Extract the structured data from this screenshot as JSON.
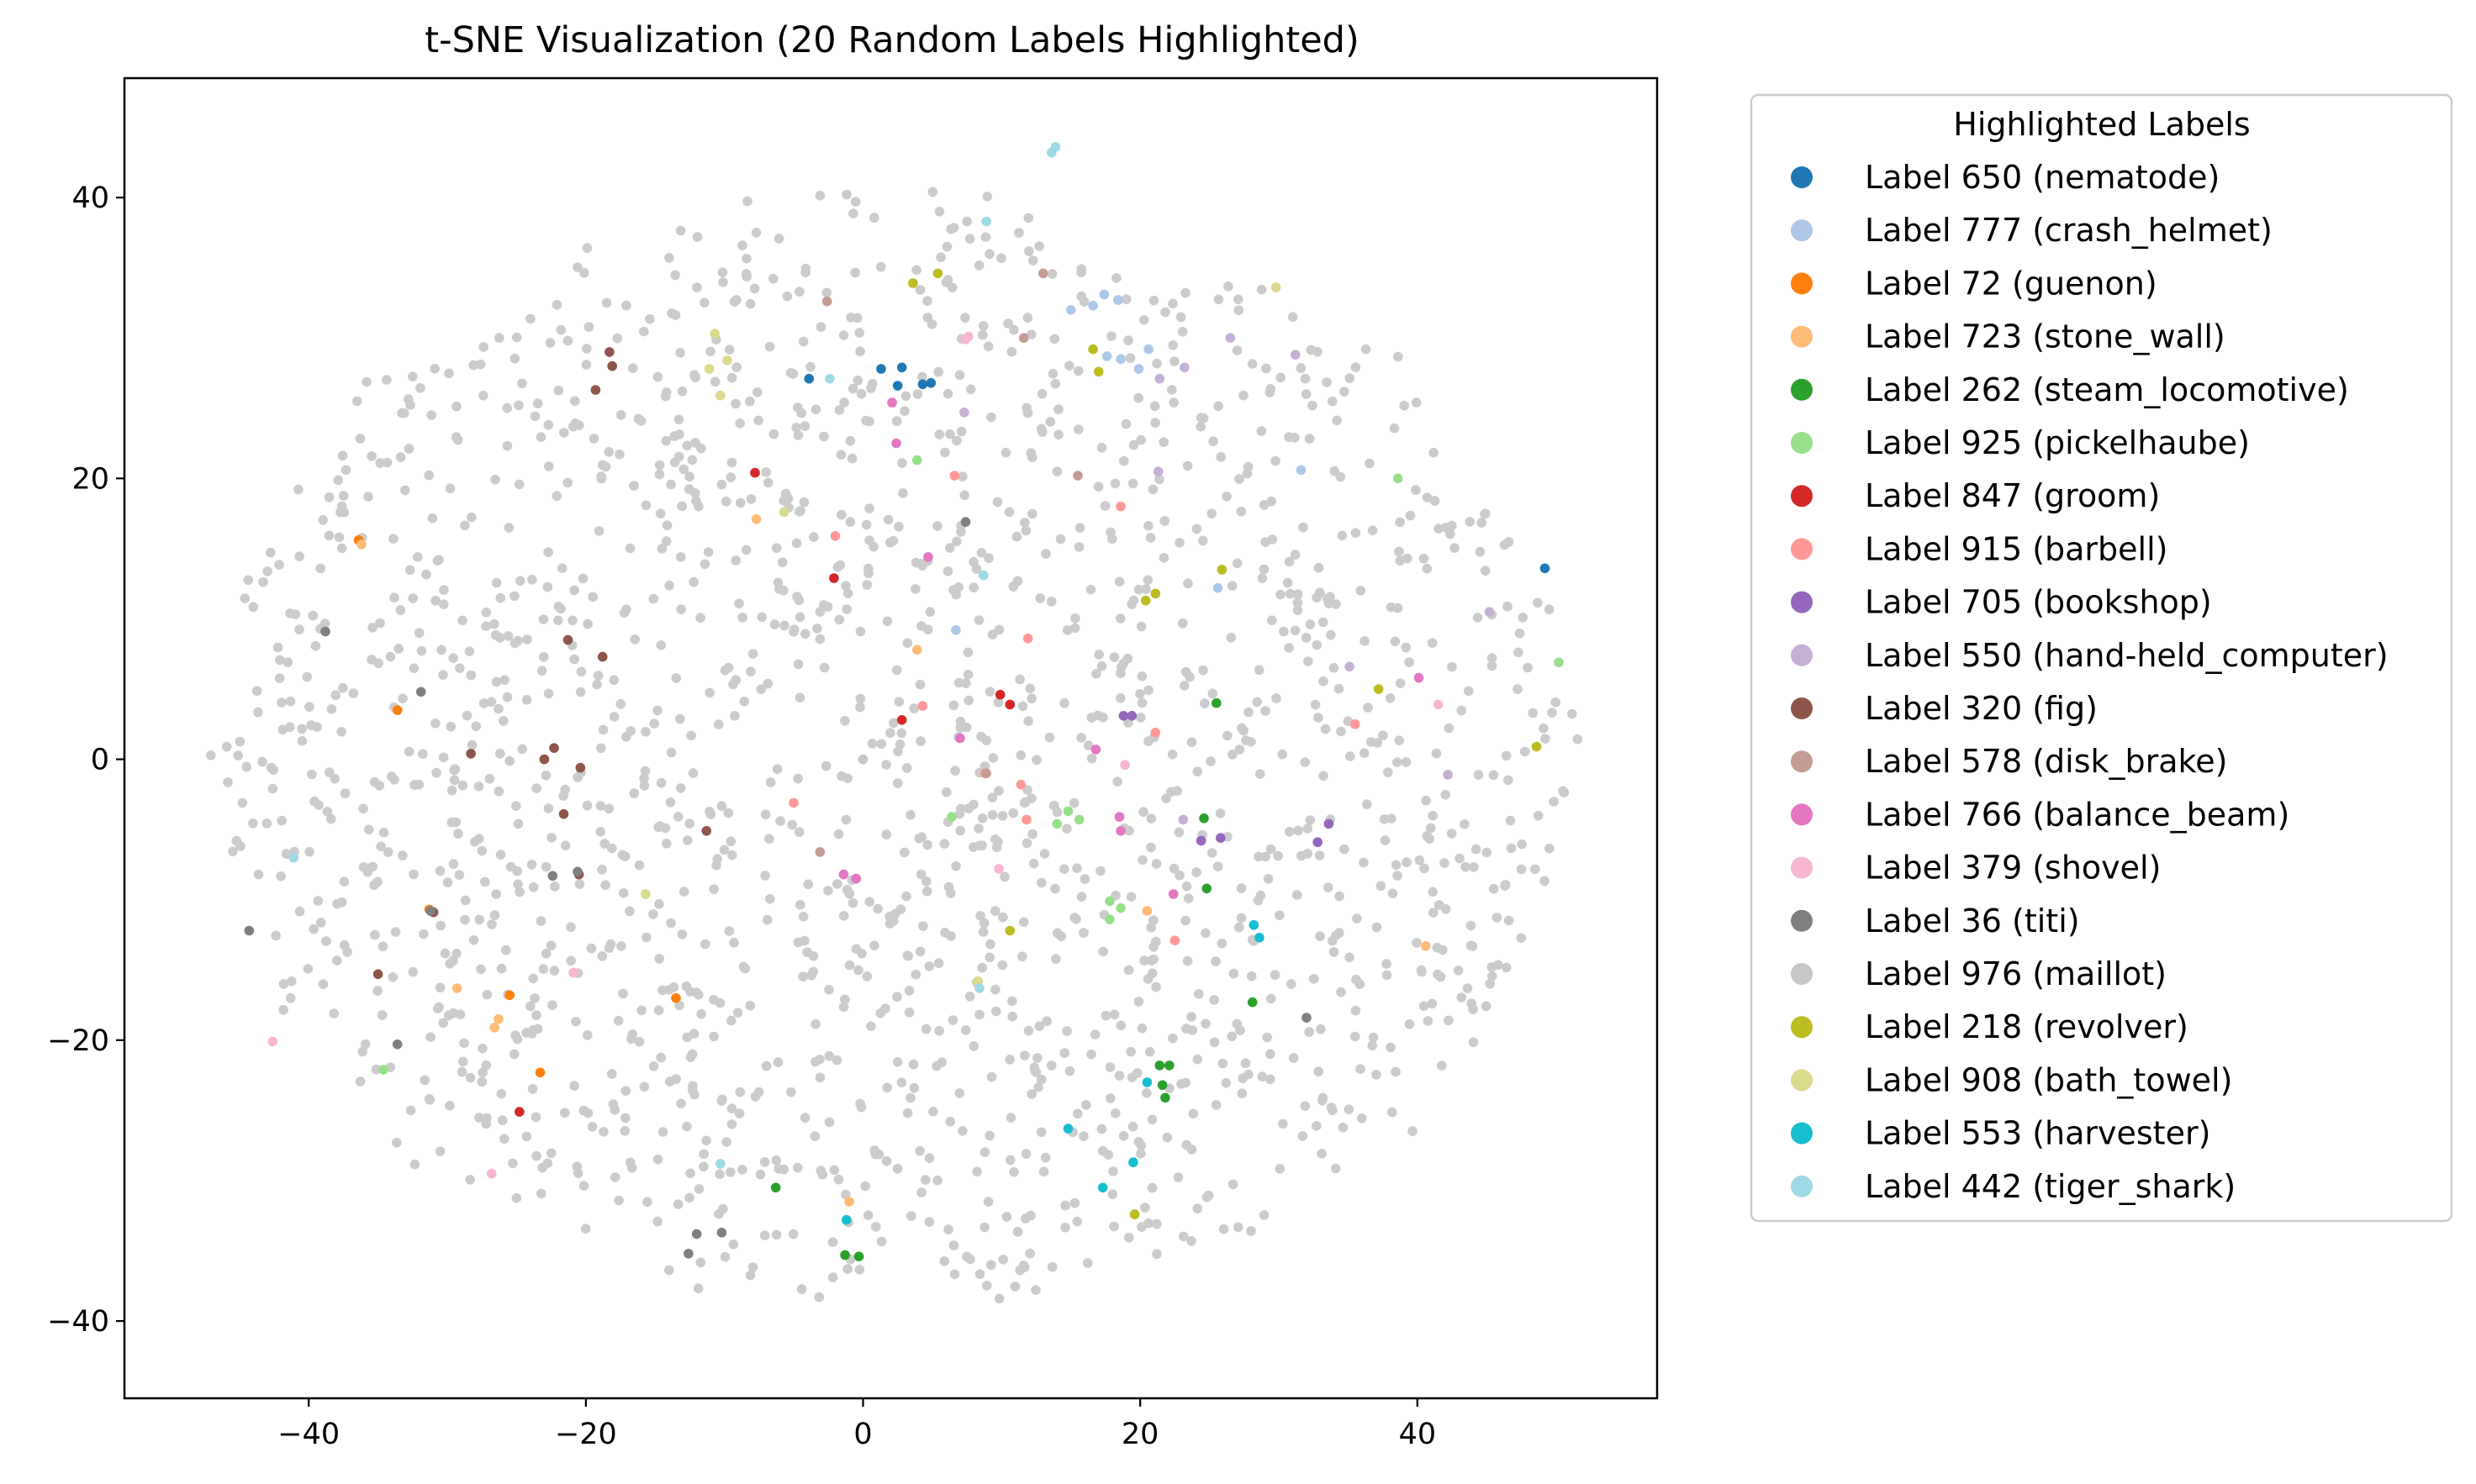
{
  "chart_data": {
    "type": "scatter",
    "title": "t-SNE Visualization (20 Random Labels Highlighted)",
    "xlabel": "",
    "ylabel": "",
    "xlim": [
      -53.3,
      57.3
    ],
    "ylim": [
      -45.5,
      48.5
    ],
    "xticks": [
      -40,
      -20,
      0,
      20,
      40
    ],
    "yticks": [
      -40,
      -20,
      0,
      20,
      40
    ],
    "tick_labels_x": [
      "−40",
      "−20",
      "0",
      "20",
      "40"
    ],
    "tick_labels_y": [
      "−40",
      "−20",
      "0",
      "20",
      "40"
    ],
    "grid": false,
    "legend_title": "Highlighted Labels",
    "legend_position": "outside right",
    "background_color": "#cccccc",
    "series": [
      {
        "name": "Label 650 (nematode)",
        "color": "#1f77b4",
        "points": [
          [
            -3.9,
            27.1
          ],
          [
            1.3,
            27.8
          ],
          [
            2.8,
            27.9
          ],
          [
            4.3,
            26.7
          ],
          [
            4.9,
            26.8
          ],
          [
            2.5,
            26.6
          ],
          [
            49.2,
            13.6
          ]
        ]
      },
      {
        "name": "Label 777 (crash_helmet)",
        "color": "#aec7e8",
        "points": [
          [
            16.6,
            32.3
          ],
          [
            17.4,
            33.1
          ],
          [
            18.4,
            32.7
          ],
          [
            17.6,
            28.7
          ],
          [
            18.6,
            28.5
          ],
          [
            19.9,
            27.8
          ],
          [
            15.0,
            32.0
          ],
          [
            31.6,
            20.6
          ],
          [
            25.6,
            12.2
          ],
          [
            6.7,
            9.2
          ],
          [
            20.6,
            29.2
          ]
        ]
      },
      {
        "name": "Label 72 (guenon)",
        "color": "#ff7f0e",
        "points": [
          [
            -36.4,
            15.6
          ],
          [
            -33.6,
            3.5
          ],
          [
            -31.3,
            -10.7
          ],
          [
            -25.5,
            -16.8
          ],
          [
            -23.3,
            -22.3
          ],
          [
            -13.5,
            -17.0
          ]
        ]
      },
      {
        "name": "Label 723 (stone_wall)",
        "color": "#ffbb78",
        "points": [
          [
            -36.2,
            15.3
          ],
          [
            -29.3,
            -16.3
          ],
          [
            -26.3,
            -18.5
          ],
          [
            -26.6,
            -19.1
          ],
          [
            -1.0,
            -31.5
          ],
          [
            3.9,
            7.8
          ],
          [
            20.5,
            -10.8
          ],
          [
            40.6,
            -13.3
          ],
          [
            -7.7,
            17.1
          ]
        ]
      },
      {
        "name": "Label 262 (steam_locomotive)",
        "color": "#2ca02c",
        "points": [
          [
            -6.3,
            -30.5
          ],
          [
            -1.3,
            -35.3
          ],
          [
            -0.3,
            -35.4
          ],
          [
            21.4,
            -21.8
          ],
          [
            22.1,
            -21.8
          ],
          [
            21.6,
            -23.2
          ],
          [
            21.8,
            -24.1
          ],
          [
            24.6,
            -4.2
          ],
          [
            25.5,
            4.0
          ],
          [
            24.8,
            -9.2
          ],
          [
            28.1,
            -17.3
          ]
        ]
      },
      {
        "name": "Label 925 (pickelhaube)",
        "color": "#98df8a",
        "points": [
          [
            3.9,
            21.3
          ],
          [
            6.4,
            -4.1
          ],
          [
            14.0,
            -4.6
          ],
          [
            15.6,
            -4.3
          ],
          [
            17.8,
            -10.1
          ],
          [
            18.6,
            -10.6
          ],
          [
            17.8,
            -11.4
          ],
          [
            50.2,
            6.9
          ],
          [
            38.6,
            20.0
          ],
          [
            -34.6,
            -22.1
          ],
          [
            14.8,
            -3.7
          ]
        ]
      },
      {
        "name": "Label 847 (groom)",
        "color": "#d62728",
        "points": [
          [
            -7.8,
            20.4
          ],
          [
            -2.1,
            12.9
          ],
          [
            2.8,
            2.8
          ],
          [
            9.9,
            4.6
          ],
          [
            10.6,
            3.9
          ],
          [
            -24.8,
            -25.1
          ]
        ]
      },
      {
        "name": "Label 915 (barbell)",
        "color": "#ff9896",
        "points": [
          [
            -2.0,
            15.9
          ],
          [
            6.6,
            20.2
          ],
          [
            11.9,
            8.6
          ],
          [
            18.6,
            18.0
          ],
          [
            21.1,
            1.9
          ],
          [
            35.5,
            2.5
          ],
          [
            8.8,
            -1.0
          ],
          [
            11.4,
            -1.8
          ],
          [
            4.3,
            3.8
          ],
          [
            22.5,
            -12.9
          ],
          [
            -5.0,
            -3.1
          ],
          [
            11.8,
            -4.3
          ]
        ]
      },
      {
        "name": "Label 705 (bookshop)",
        "color": "#9467bd",
        "points": [
          [
            18.8,
            3.1
          ],
          [
            19.4,
            3.1
          ],
          [
            24.4,
            -5.8
          ],
          [
            25.8,
            -5.6
          ],
          [
            33.6,
            -4.6
          ],
          [
            32.8,
            -5.9
          ]
        ]
      },
      {
        "name": "Label 550 (hand-held_computer)",
        "color": "#c5b0d5",
        "points": [
          [
            21.4,
            27.1
          ],
          [
            23.2,
            27.9
          ],
          [
            26.5,
            30.0
          ],
          [
            31.2,
            28.8
          ],
          [
            21.3,
            20.5
          ],
          [
            45.2,
            10.5
          ],
          [
            42.2,
            -1.1
          ],
          [
            7.3,
            24.7
          ],
          [
            23.1,
            -4.3
          ],
          [
            35.1,
            6.6
          ]
        ]
      },
      {
        "name": "Label 320 (fig)",
        "color": "#8c564b",
        "points": [
          [
            -18.3,
            29.0
          ],
          [
            -18.1,
            28.0
          ],
          [
            -19.3,
            26.3
          ],
          [
            -21.3,
            8.5
          ],
          [
            -18.8,
            7.3
          ],
          [
            -28.3,
            0.4
          ],
          [
            -22.3,
            0.8
          ],
          [
            -23.0,
            0.0
          ],
          [
            -20.4,
            -0.6
          ],
          [
            -21.6,
            -3.9
          ],
          [
            -11.3,
            -5.1
          ],
          [
            -20.5,
            -8.2
          ],
          [
            -31.0,
            -10.9
          ],
          [
            -35.0,
            -15.3
          ]
        ]
      },
      {
        "name": "Label 578 (disk_brake)",
        "color": "#c49c94",
        "points": [
          [
            -2.6,
            32.6
          ],
          [
            13.0,
            34.6
          ],
          [
            11.6,
            30.0
          ],
          [
            8.9,
            -1.0
          ],
          [
            -3.1,
            -6.6
          ],
          [
            15.5,
            20.2
          ]
        ]
      },
      {
        "name": "Label 766 (balance_beam)",
        "color": "#e377c2",
        "points": [
          [
            2.1,
            25.4
          ],
          [
            4.7,
            14.4
          ],
          [
            2.4,
            22.5
          ],
          [
            7.0,
            1.5
          ],
          [
            16.8,
            0.7
          ],
          [
            18.5,
            -4.1
          ],
          [
            18.6,
            -5.1
          ],
          [
            22.4,
            -9.6
          ],
          [
            40.1,
            5.8
          ],
          [
            -1.4,
            -8.2
          ],
          [
            -0.5,
            -8.5
          ]
        ]
      },
      {
        "name": "Label 379 (shovel)",
        "color": "#f7b6d2",
        "points": [
          [
            7.4,
            29.9
          ],
          [
            18.9,
            -0.4
          ],
          [
            9.8,
            -7.8
          ],
          [
            -20.9,
            -15.2
          ],
          [
            -42.6,
            -20.1
          ],
          [
            -26.8,
            -29.5
          ],
          [
            41.5,
            3.9
          ],
          [
            7.6,
            30.1
          ]
        ]
      },
      {
        "name": "Label 36 (titi)",
        "color": "#7f7f7f",
        "points": [
          [
            7.4,
            16.9
          ],
          [
            -38.8,
            9.1
          ],
          [
            -31.9,
            4.8
          ],
          [
            -31.2,
            -10.8
          ],
          [
            -44.3,
            -12.2
          ],
          [
            -33.6,
            -20.3
          ],
          [
            -12.0,
            -33.8
          ],
          [
            -10.2,
            -33.7
          ],
          [
            -12.6,
            -35.2
          ],
          [
            32.0,
            -18.4
          ],
          [
            -22.4,
            -8.3
          ],
          [
            -20.6,
            -8.0
          ]
        ]
      },
      {
        "name": "Label 976 (maillot)",
        "color": "#c7c7c7",
        "points": [
          [
            0.0,
            0.0
          ]
        ]
      },
      {
        "name": "Label 218 (revolver)",
        "color": "#bcbd22",
        "points": [
          [
            3.6,
            33.9
          ],
          [
            5.4,
            34.6
          ],
          [
            16.6,
            29.2
          ],
          [
            17.0,
            27.6
          ],
          [
            20.4,
            11.3
          ],
          [
            21.1,
            11.8
          ],
          [
            25.9,
            13.5
          ],
          [
            37.2,
            5.0
          ],
          [
            48.6,
            0.9
          ],
          [
            10.6,
            -12.2
          ],
          [
            19.6,
            -32.4
          ]
        ]
      },
      {
        "name": "Label 908 (bath_towel)",
        "color": "#dbdb8d",
        "points": [
          [
            -10.7,
            30.3
          ],
          [
            -10.3,
            25.9
          ],
          [
            -9.8,
            28.4
          ],
          [
            -11.1,
            27.8
          ],
          [
            -5.7,
            17.6
          ],
          [
            29.8,
            33.6
          ],
          [
            -15.7,
            -9.6
          ],
          [
            8.3,
            -15.8
          ]
        ]
      },
      {
        "name": "Label 553 (harvester)",
        "color": "#17becf",
        "points": [
          [
            28.2,
            -11.8
          ],
          [
            28.6,
            -12.7
          ],
          [
            19.5,
            -28.7
          ],
          [
            17.3,
            -30.5
          ],
          [
            20.5,
            -23.0
          ],
          [
            -1.2,
            -32.8
          ],
          [
            14.8,
            -26.3
          ]
        ]
      },
      {
        "name": "Label 442 (tiger_shark)",
        "color": "#9edae5",
        "points": [
          [
            13.6,
            43.2
          ],
          [
            13.9,
            43.6
          ],
          [
            -2.4,
            27.1
          ],
          [
            8.7,
            13.1
          ],
          [
            -41.1,
            -7.0
          ],
          [
            8.4,
            -16.3
          ],
          [
            -10.3,
            -28.8
          ],
          [
            8.9,
            38.3
          ]
        ]
      }
    ]
  }
}
